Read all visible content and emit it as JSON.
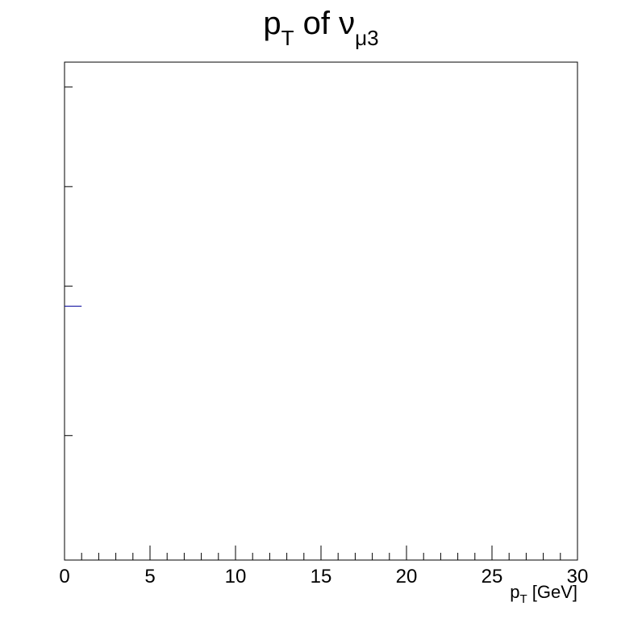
{
  "chart_data": {
    "type": "bar",
    "title": {
      "base": "p",
      "base_sub": "T",
      "middle": " of ",
      "symbol": "ν",
      "symbol_sub": "μ3"
    },
    "xlabel": {
      "base": "p",
      "base_sub": "T",
      "unit": " [GeV]"
    },
    "ylabel": "",
    "xlim": [
      0,
      30
    ],
    "x_major_ticks": [
      0,
      5,
      10,
      15,
      20,
      25,
      30
    ],
    "x_minor_step": 1,
    "y_relative_ticks": [
      0.25,
      0.55,
      0.75,
      0.95
    ],
    "bins": [
      {
        "x0": 0,
        "x1": 1,
        "level": 0.51
      }
    ],
    "series_color": "#000099",
    "grid": false,
    "legend": "none"
  }
}
